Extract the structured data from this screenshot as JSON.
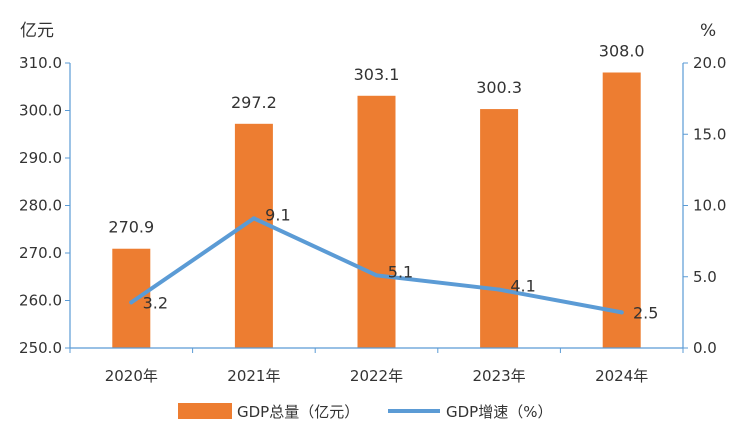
{
  "chart_data": {
    "type": "bar",
    "categories": [
      "2020年",
      "2021年",
      "2022年",
      "2023年",
      "2024年"
    ],
    "series": [
      {
        "name": "GDP总量（亿元）",
        "type": "bar",
        "axis": "left",
        "values": [
          270.9,
          297.2,
          303.1,
          300.3,
          308.0
        ],
        "labels": [
          "270.9",
          "297.2",
          "303.1",
          "300.3",
          "308.0"
        ]
      },
      {
        "name": "GDP增速（%）",
        "type": "line",
        "axis": "right",
        "values": [
          3.2,
          9.1,
          5.1,
          4.1,
          2.5
        ],
        "labels": [
          "3.2",
          "9.1",
          "5.1",
          "4.1",
          "2.5"
        ]
      }
    ],
    "y_left": {
      "unit": "亿元",
      "ylim": [
        250,
        310
      ],
      "ticks": [
        "250.0",
        "260.0",
        "270.0",
        "280.0",
        "290.0",
        "300.0",
        "310.0"
      ]
    },
    "y_right": {
      "unit": "%",
      "ylim": [
        0,
        20
      ],
      "ticks": [
        "0.0",
        "5.0",
        "10.0",
        "15.0",
        "20.0"
      ]
    },
    "grid": false,
    "legend_position": "bottom",
    "colors": {
      "bar": "#ED7D31",
      "line": "#5B9BD5",
      "axis": "#5B9BD5"
    }
  }
}
